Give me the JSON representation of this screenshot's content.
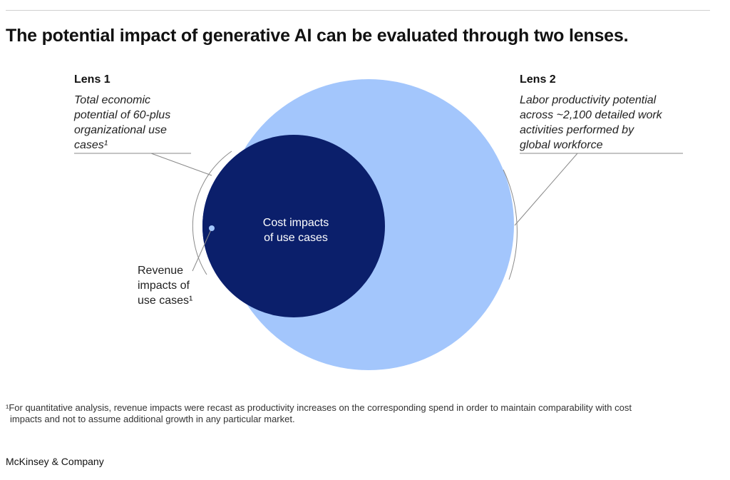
{
  "title": "The potential impact of generative AI can be evaluated through two lenses.",
  "lens1": {
    "heading": "Lens 1",
    "description": [
      "Total economic",
      "potential of 60-plus",
      "organizational use",
      "cases¹"
    ]
  },
  "lens2": {
    "heading": "Lens 2",
    "description": [
      "Labor productivity potential",
      "across ~2,100 detailed work",
      "activities performed by",
      "global workforce"
    ]
  },
  "circles": {
    "cost_label": [
      "Cost impacts",
      "of use cases"
    ],
    "revenue_label": [
      "Revenue",
      "impacts of",
      "use cases¹"
    ]
  },
  "colors": {
    "large_circle": "#a3c6fc",
    "revenue_crescent": "#1d39b8",
    "cost_circle": "#0b1f6b",
    "leader_line": "#8a8a8a",
    "rule": "#cfcfcf"
  },
  "footnote": [
    "¹For quantitative analysis, revenue impacts were recast as productivity increases on the corresponding spend in order to maintain comparability with cost",
    "impacts and not to assume additional growth in any particular market."
  ],
  "brand": "McKinsey & Company"
}
